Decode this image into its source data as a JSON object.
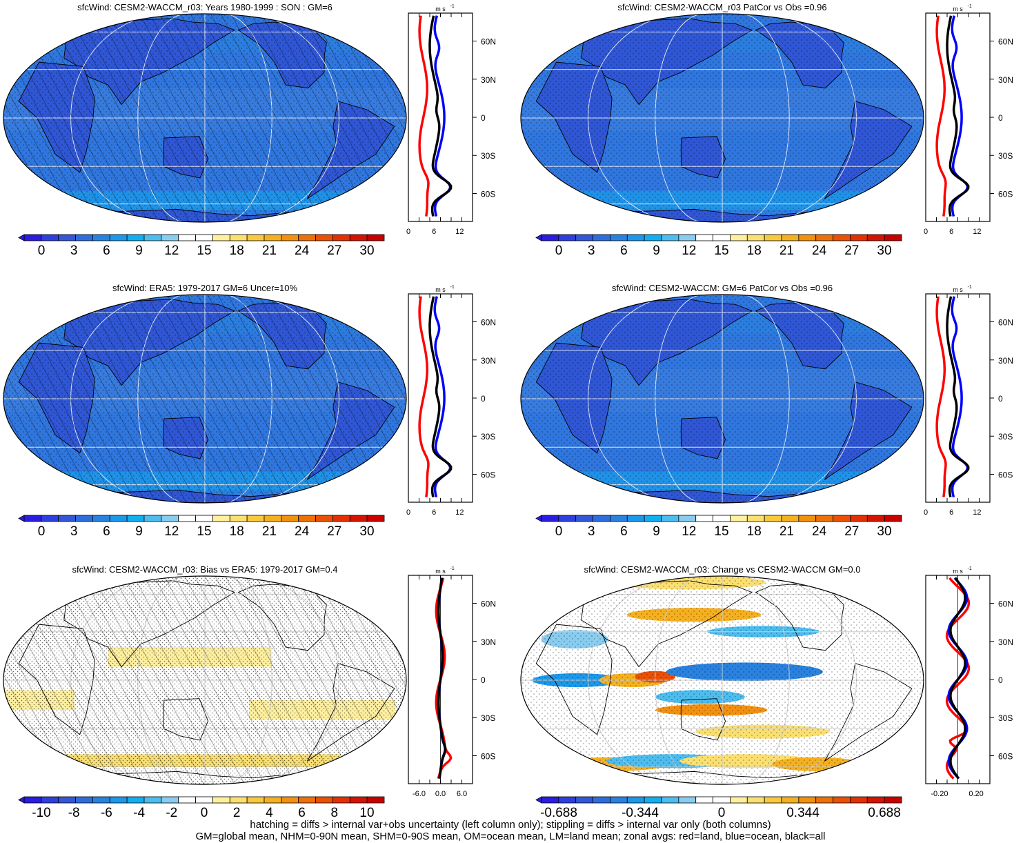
{
  "panels": [
    {
      "title": "sfcWind: CESM2-WACCM_r03: Years 1980-1999 : SON : GM=6",
      "kind": "abs",
      "hatch": true,
      "stipple": "sparse",
      "colorbar_ticks": [
        "0",
        "3",
        "6",
        "9",
        "12",
        "15",
        "18",
        "21",
        "24",
        "27",
        "30"
      ],
      "zonal": {
        "units": "m s",
        "units_sup": "-1",
        "xticks": [
          "0",
          "6",
          "12"
        ],
        "xlim": [
          0,
          15
        ],
        "yticks": [
          "60N",
          "30N",
          "0",
          "30S",
          "60S"
        ]
      }
    },
    {
      "title": "sfcWind: CESM2-WACCM_r03 PatCor vs Obs =0.96",
      "kind": "abs",
      "hatch": false,
      "stipple": "sparse",
      "colorbar_ticks": [
        "0",
        "3",
        "6",
        "9",
        "12",
        "15",
        "18",
        "21",
        "24",
        "27",
        "30"
      ],
      "zonal": {
        "units": "m s",
        "units_sup": "-1",
        "xticks": [
          "0",
          "6",
          "12"
        ],
        "xlim": [
          0,
          15
        ],
        "yticks": [
          "60N",
          "30N",
          "0",
          "30S",
          "60S"
        ]
      }
    },
    {
      "title": "sfcWind: ERA5: 1979-2017 GM=6 Uncer=10%",
      "kind": "abs",
      "hatch": true,
      "stipple": "sparse",
      "colorbar_ticks": [
        "0",
        "3",
        "6",
        "9",
        "12",
        "15",
        "18",
        "21",
        "24",
        "27",
        "30"
      ],
      "zonal": {
        "units": "m s",
        "units_sup": "-1",
        "xticks": [
          "0",
          "6",
          "12"
        ],
        "xlim": [
          0,
          15
        ],
        "yticks": [
          "60N",
          "30N",
          "0",
          "30S",
          "60S"
        ]
      }
    },
    {
      "title": "sfcWind: CESM2-WACCM: GM=6 PatCor vs Obs =0.96",
      "kind": "abs",
      "hatch": false,
      "stipple": "sparse",
      "colorbar_ticks": [
        "0",
        "3",
        "6",
        "9",
        "12",
        "15",
        "18",
        "21",
        "24",
        "27",
        "30"
      ],
      "zonal": {
        "units": "m s",
        "units_sup": "-1",
        "xticks": [
          "0",
          "6",
          "12"
        ],
        "xlim": [
          0,
          15
        ],
        "yticks": [
          "60N",
          "30N",
          "0",
          "30S",
          "60S"
        ]
      }
    },
    {
      "title": "sfcWind: CESM2-WACCM_r03: Bias vs ERA5: 1979-2017  GM=0.4",
      "kind": "bias",
      "hatch": true,
      "stipple": "dense",
      "colorbar_ticks": [
        "-10",
        "-8",
        "-6",
        "-4",
        "-2",
        "0",
        "2",
        "4",
        "6",
        "8",
        "10"
      ],
      "zonal": {
        "units": "m s",
        "units_sup": "-1",
        "xticks": [
          "-6.0",
          "0.0",
          "6.0"
        ],
        "xlim": [
          -9,
          9
        ],
        "yticks": [
          "60N",
          "30N",
          "0",
          "30S",
          "60S"
        ]
      }
    },
    {
      "title": "sfcWind: CESM2-WACCM_r03: Change vs CESM2-WACCM GM=0.0",
      "kind": "change",
      "hatch": false,
      "stipple": "sparse",
      "colorbar_ticks": [
        "-0.688",
        "-0.344",
        "0",
        "0.344",
        "0.688"
      ],
      "zonal": {
        "units": "m s",
        "units_sup": "-1",
        "xticks": [
          "-0.20",
          "0.20"
        ],
        "xlim": [
          -0.35,
          0.35
        ],
        "yticks": [
          "60N",
          "30N",
          "0",
          "30S",
          "60S"
        ]
      }
    }
  ],
  "palette_abs": [
    "#2a1de0",
    "#2e3fdc",
    "#3357d8",
    "#2e6edc",
    "#2a82e0",
    "#1c98ea",
    "#13aef0",
    "#4cbdee",
    "#88cdf0",
    "#ffffff",
    "#ffffff",
    "#fff0a0",
    "#fbe070",
    "#f8c93c",
    "#f5b020",
    "#f29010",
    "#ee7008",
    "#ea5006",
    "#e23004",
    "#d41402",
    "#c80000"
  ],
  "palette_diff": [
    "#2a1de0",
    "#2e3fdc",
    "#3357d8",
    "#2e6edc",
    "#2a82e0",
    "#1c98ea",
    "#13aef0",
    "#4cbdee",
    "#88cdf0",
    "#ffffff",
    "#ffffff",
    "#fff0a0",
    "#fbe070",
    "#f8c93c",
    "#f5b020",
    "#f29010",
    "#ee7008",
    "#ea5006",
    "#e23004",
    "#d41402",
    "#c80000"
  ],
  "series_colors": {
    "land": "#ff0000",
    "ocean": "#0000ff",
    "all": "#000000"
  },
  "footer": [
    "hatching = diffs > internal var+obs uncertainty (left column only); stippling = diffs > internal var only (both columns)",
    "GM=global mean, NHM=0-90N mean, SHM=0-90S mean, OM=ocean mean, LM=land mean; zonal avgs: red=land, blue=ocean, black=all"
  ]
}
